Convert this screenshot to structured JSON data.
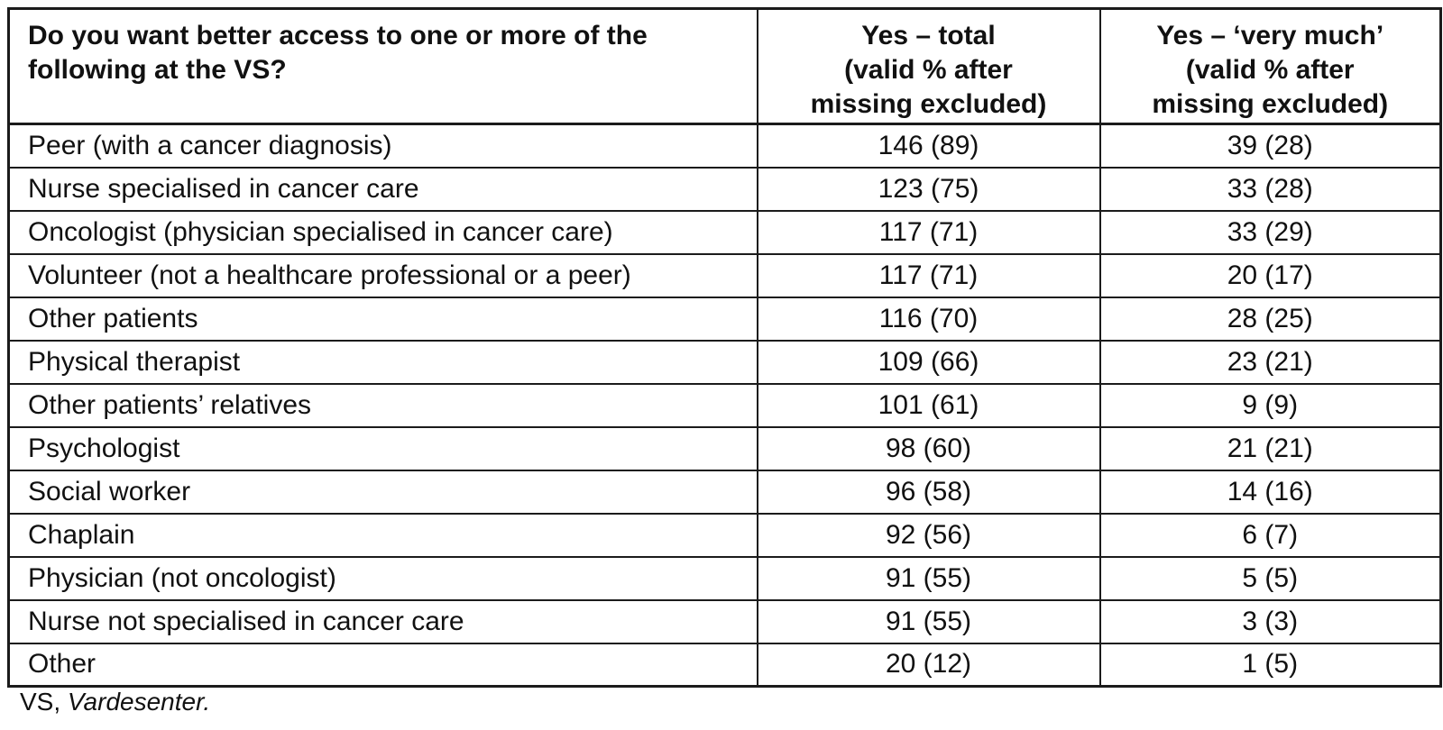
{
  "table": {
    "header": {
      "question": "Do you want better access to one or more of the following at the VS?",
      "yes_total": "Yes – total\n(valid % after\nmissing excluded)",
      "yes_very_much": "Yes – ‘very much’\n(valid % after\nmissing excluded)"
    },
    "rows": [
      {
        "label": "Peer (with a cancer diagnosis)",
        "yes_total": "146 (89)",
        "yes_very_much": "39 (28)"
      },
      {
        "label": "Nurse specialised in cancer care",
        "yes_total": "123 (75)",
        "yes_very_much": "33 (28)"
      },
      {
        "label": "Oncologist (physician specialised in cancer care)",
        "yes_total": "117 (71)",
        "yes_very_much": "33 (29)"
      },
      {
        "label": "Volunteer (not a healthcare professional or a peer)",
        "yes_total": "117 (71)",
        "yes_very_much": "20 (17)"
      },
      {
        "label": "Other patients",
        "yes_total": "116 (70)",
        "yes_very_much": "28 (25)"
      },
      {
        "label": "Physical therapist",
        "yes_total": "109 (66)",
        "yes_very_much": "23 (21)"
      },
      {
        "label": "Other patients’ relatives",
        "yes_total": "101 (61)",
        "yes_very_much": "9 (9)"
      },
      {
        "label": "Psychologist",
        "yes_total": "98 (60)",
        "yes_very_much": "21 (21)"
      },
      {
        "label": "Social worker",
        "yes_total": "96 (58)",
        "yes_very_much": "14 (16)"
      },
      {
        "label": "Chaplain",
        "yes_total": "92 (56)",
        "yes_very_much": "6 (7)"
      },
      {
        "label": "Physician (not oncologist)",
        "yes_total": "91 (55)",
        "yes_very_much": "5 (5)"
      },
      {
        "label": "Nurse not specialised in cancer care",
        "yes_total": "91 (55)",
        "yes_very_much": "3 (3)"
      },
      {
        "label": "Other",
        "yes_total": "20 (12)",
        "yes_very_much": "1 (5)"
      }
    ],
    "footnote": {
      "abbreviation": "VS, ",
      "term": "Vardesenter."
    },
    "colors": {
      "text": "#111111",
      "border": "#1b1b1b",
      "background": "#ffffff"
    }
  }
}
